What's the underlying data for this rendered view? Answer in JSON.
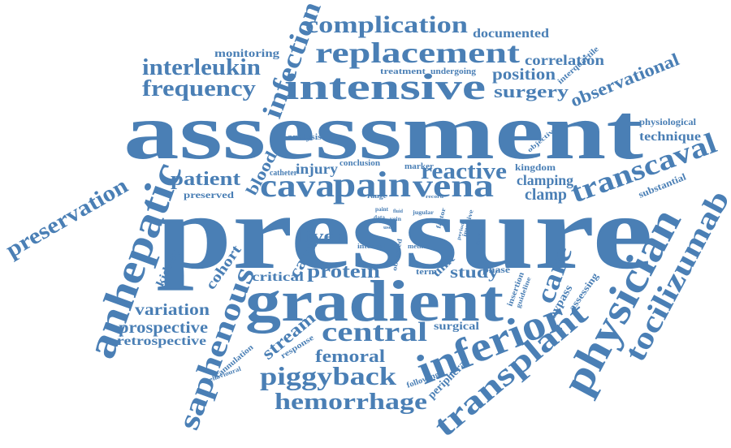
{
  "color": "#4a7fb5",
  "words": {
    "pressure": "pressure",
    "assessment": "assessment",
    "gradient": "gradient",
    "intensive": "intensive",
    "replacement": "replacement",
    "complication": "complication",
    "documented": "documented",
    "monitoring": "monitoring",
    "infection": "infection",
    "interleukin": "interleukin",
    "frequency": "frequency",
    "correlation": "correlation",
    "treatment": "treatment",
    "undergoing": "undergoing",
    "position": "position",
    "surgery": "surgery",
    "observational": "observational",
    "interquartile": "interquartile",
    "physiological": "physiological",
    "technique": "technique",
    "objective": "objective",
    "analysis": "analysis",
    "preservation": "preservation",
    "anhepatic": "anhepatic",
    "patient": "patient",
    "blood": "blood",
    "catheter": "catheter",
    "conclusion": "conclusion",
    "injury": "injury",
    "marker": "marker",
    "reactive": "reactive",
    "kingdom": "kingdom",
    "clamping": "clamping",
    "clamp": "clamp",
    "transcaval": "transcaval",
    "substantial": "substantial",
    "tocilizumab": "tocilizumab",
    "physician": "physician",
    "cava": "cava",
    "pain": "pain",
    "vena": "vena",
    "preserved": "preserved",
    "range": "range",
    "record": "record",
    "jugular": "jugular",
    "factor": "factor",
    "invasive": "invasive",
    "paint": "paint",
    "data": "data",
    "vein": "vein",
    "use": "use",
    "period": "period",
    "finding": "finding",
    "fluid": "fluid",
    "liver": "liver",
    "internal": "internal",
    "method": "method",
    "caval": "caval",
    "kidney": "kidney",
    "cohort": "cohort",
    "saphenous": "saphenous",
    "protein": "protein",
    "critical": "critical",
    "unit": "unit",
    "study": "study",
    "phase": "phase",
    "term": "term",
    "care": "care",
    "variation": "variation",
    "prospective": "prospective",
    "retrospective": "retrospective",
    "central": "central",
    "stream": "stream",
    "surgical": "surgical",
    "insertion": "insertion",
    "guideline": "guideline",
    "bypass": "bypass",
    "assessing": "assessing",
    "cannulation": "cannulation",
    "response": "response",
    "behavioural": "behavioural",
    "femoral": "femoral",
    "inferior": "inferior",
    "transplant": "transplant",
    "piggyback": "piggyback",
    "hemorrhage": "hemorrhage",
    "following": "following",
    "peripheral": "peripheral"
  }
}
